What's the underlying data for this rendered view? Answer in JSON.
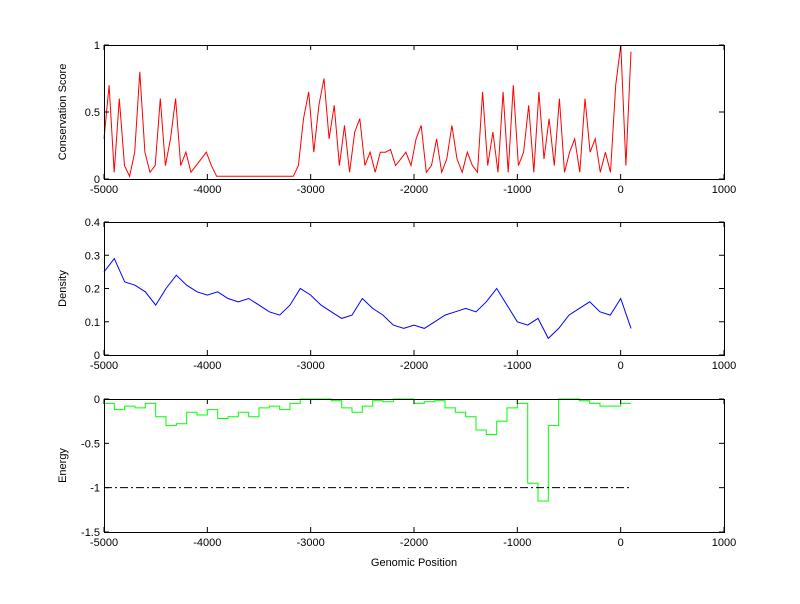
{
  "chart_data": [
    {
      "type": "line",
      "ylabel": "Conservation Score",
      "xlabel": "",
      "xlim": [
        -5000,
        1000
      ],
      "ylim": [
        0,
        1
      ],
      "xticks": [
        -5000,
        -4000,
        -3000,
        -2000,
        -1000,
        0,
        1000
      ],
      "yticks": [
        0,
        0.5,
        1
      ],
      "ytick_labels": [
        "0",
        "0.5",
        "1"
      ],
      "color": "#ff0000",
      "x_range": [
        -5000,
        100
      ],
      "values": [
        0.3,
        0.7,
        0.05,
        0.6,
        0.1,
        0.02,
        0.2,
        0.8,
        0.2,
        0.05,
        0.1,
        0.6,
        0.1,
        0.3,
        0.6,
        0.1,
        0.2,
        0.05,
        0.1,
        0.15,
        0.2,
        0.1,
        0.02,
        0.02,
        0.02,
        0.02,
        0.02,
        0.02,
        0.02,
        0.02,
        0.02,
        0.02,
        0.02,
        0.02,
        0.02,
        0.02,
        0.02,
        0.02,
        0.1,
        0.45,
        0.65,
        0.2,
        0.55,
        0.75,
        0.3,
        0.55,
        0.1,
        0.4,
        0.05,
        0.35,
        0.45,
        0.1,
        0.2,
        0.05,
        0.2,
        0.2,
        0.22,
        0.1,
        0.15,
        0.2,
        0.1,
        0.3,
        0.4,
        0.05,
        0.1,
        0.3,
        0.05,
        0.15,
        0.4,
        0.15,
        0.05,
        0.2,
        0.1,
        0.05,
        0.65,
        0.1,
        0.35,
        0.05,
        0.65,
        0.05,
        0.7,
        0.1,
        0.2,
        0.55,
        0.05,
        0.65,
        0.15,
        0.45,
        0.1,
        0.6,
        0.05,
        0.2,
        0.3,
        0.05,
        0.6,
        0.2,
        0.3,
        0.05,
        0.2,
        0.05,
        0.7,
        1.0,
        0.1,
        0.95
      ]
    },
    {
      "type": "line",
      "ylabel": "Density",
      "xlabel": "",
      "xlim": [
        -5000,
        1000
      ],
      "ylim": [
        0,
        0.4
      ],
      "xticks": [
        -5000,
        -4000,
        -3000,
        -2000,
        -1000,
        0,
        1000
      ],
      "yticks": [
        0,
        0.1,
        0.2,
        0.3,
        0.4
      ],
      "ytick_labels": [
        "0",
        "0.1",
        "0.2",
        "0.3",
        "0.4"
      ],
      "color": "#0000ff",
      "x_range": [
        -5000,
        100
      ],
      "values": [
        0.25,
        0.29,
        0.22,
        0.21,
        0.19,
        0.15,
        0.2,
        0.24,
        0.21,
        0.19,
        0.18,
        0.19,
        0.17,
        0.16,
        0.17,
        0.15,
        0.13,
        0.12,
        0.15,
        0.2,
        0.18,
        0.15,
        0.13,
        0.11,
        0.12,
        0.17,
        0.14,
        0.12,
        0.09,
        0.08,
        0.09,
        0.08,
        0.1,
        0.12,
        0.13,
        0.14,
        0.13,
        0.16,
        0.2,
        0.15,
        0.1,
        0.09,
        0.11,
        0.05,
        0.08,
        0.12,
        0.14,
        0.16,
        0.13,
        0.12,
        0.17,
        0.08
      ]
    },
    {
      "type": "line",
      "ylabel": "Energy",
      "xlabel": "Genomic Position",
      "xlim": [
        -5000,
        1000
      ],
      "ylim": [
        -1.5,
        0
      ],
      "xticks": [
        -5000,
        -4000,
        -3000,
        -2000,
        -1000,
        0,
        1000
      ],
      "yticks": [
        -1.5,
        -1,
        -0.5,
        0
      ],
      "ytick_labels": [
        "-1.5",
        "-1",
        "-0.5",
        "0"
      ],
      "color": "#00ff00",
      "x_range": [
        -5000,
        100
      ],
      "stairs": true,
      "values": [
        -0.05,
        -0.12,
        -0.08,
        -0.1,
        -0.05,
        -0.2,
        -0.3,
        -0.28,
        -0.15,
        -0.18,
        -0.12,
        -0.22,
        -0.2,
        -0.15,
        -0.2,
        -0.1,
        -0.08,
        -0.12,
        -0.05,
        0,
        0,
        0,
        -0.02,
        -0.1,
        -0.15,
        -0.08,
        -0.02,
        -0.03,
        0,
        0,
        -0.05,
        -0.03,
        -0.02,
        -0.1,
        -0.15,
        -0.2,
        -0.35,
        -0.4,
        -0.25,
        -0.1,
        -0.05,
        -0.95,
        -1.15,
        -0.3,
        0,
        0,
        -0.02,
        -0.05,
        -0.08,
        -0.08,
        -0.05,
        -0.05
      ],
      "threshold": {
        "y": -1,
        "x_range": [
          -5000,
          100
        ],
        "style": "dash-dot",
        "color": "#000000"
      }
    }
  ]
}
